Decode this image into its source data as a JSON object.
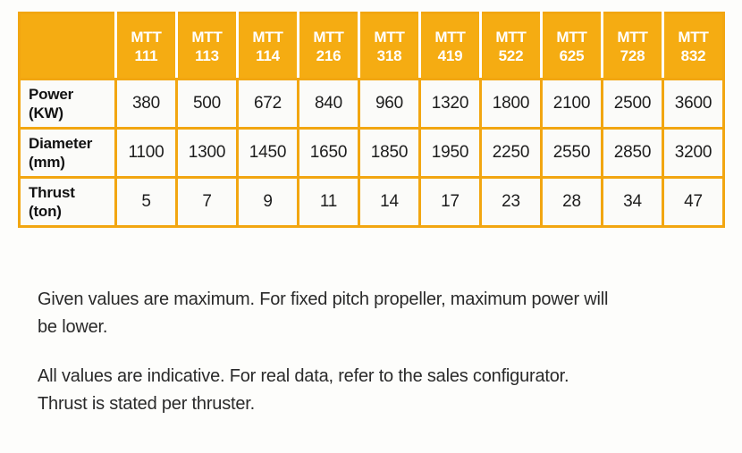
{
  "colors": {
    "header_bg": "#F5AC12",
    "grid_border": "#F2A611",
    "header_text": "#FFFFFF",
    "cell_bg": "#FBFBF9",
    "body_text": "#2A2A2A"
  },
  "table": {
    "columns": [
      {
        "series": "MTT",
        "model": "111"
      },
      {
        "series": "MTT",
        "model": "113"
      },
      {
        "series": "MTT",
        "model": "114"
      },
      {
        "series": "MTT",
        "model": "216"
      },
      {
        "series": "MTT",
        "model": "318"
      },
      {
        "series": "MTT",
        "model": "419"
      },
      {
        "series": "MTT",
        "model": "522"
      },
      {
        "series": "MTT",
        "model": "625"
      },
      {
        "series": "MTT",
        "model": "728"
      },
      {
        "series": "MTT",
        "model": "832"
      }
    ],
    "rows": [
      {
        "label": "Power",
        "unit": "(KW)",
        "values": [
          "380",
          "500",
          "672",
          "840",
          "960",
          "1320",
          "1800",
          "2100",
          "2500",
          "3600"
        ]
      },
      {
        "label": "Diameter",
        "unit": "(mm)",
        "values": [
          "1100",
          "1300",
          "1450",
          "1650",
          "1850",
          "1950",
          "2250",
          "2550",
          "2850",
          "3200"
        ]
      },
      {
        "label": "Thrust",
        "unit": "(ton)",
        "values": [
          "5",
          "7",
          "9",
          "11",
          "14",
          "17",
          "23",
          "28",
          "34",
          "47"
        ]
      }
    ]
  },
  "notes": [
    {
      "lines": [
        "Given values are maximum. For fixed pitch propeller, maximum power will",
        "be lower."
      ]
    },
    {
      "lines": [
        "All values are indicative. For real data, refer to the sales configurator.",
        "Thrust is stated per thruster."
      ]
    }
  ]
}
